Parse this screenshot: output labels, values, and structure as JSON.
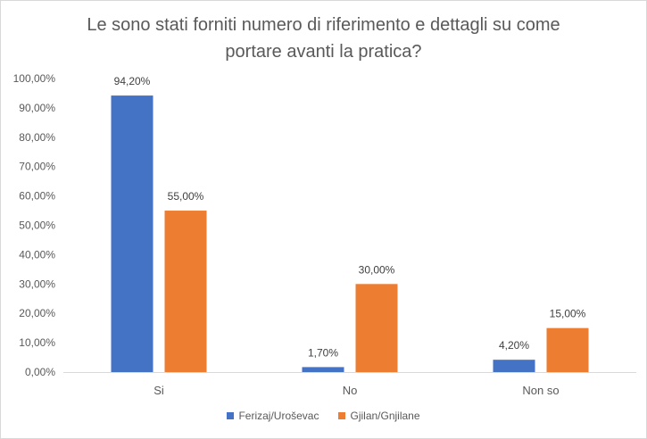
{
  "chart_data": {
    "type": "bar",
    "title_line1": "Le sono stati forniti numero di riferimento e dettagli su come",
    "title_line2": "portare avanti la pratica?",
    "categories": [
      "Si",
      "No",
      "Non so"
    ],
    "series": [
      {
        "name": "Ferizaj/Uroševac",
        "color": "#4472C4",
        "values": [
          94.2,
          1.7,
          4.2
        ],
        "labels": [
          "94,20%",
          "1,70%",
          "4,20%"
        ]
      },
      {
        "name": "Gjilan/Gnjilane",
        "color": "#ED7D31",
        "values": [
          55.0,
          30.0,
          15.0
        ],
        "labels": [
          "55,00%",
          "30,00%",
          "15,00%"
        ]
      }
    ],
    "y_ticks": [
      "0,00%",
      "10,00%",
      "20,00%",
      "30,00%",
      "40,00%",
      "50,00%",
      "60,00%",
      "70,00%",
      "80,00%",
      "90,00%",
      "100,00%"
    ],
    "ylim": [
      0,
      100
    ],
    "grid": false,
    "legend_position": "bottom"
  }
}
